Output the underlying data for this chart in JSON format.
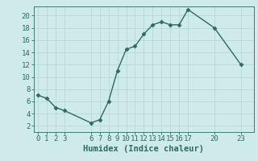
{
  "x": [
    0,
    1,
    2,
    3,
    6,
    7,
    8,
    9,
    10,
    11,
    12,
    13,
    14,
    15,
    16,
    17,
    20,
    23
  ],
  "y": [
    7,
    6.5,
    5,
    4.5,
    2.5,
    3,
    6,
    11,
    14.5,
    15,
    17,
    18.5,
    19,
    18.5,
    18.5,
    21,
    18,
    12
  ],
  "line_color": "#2e6b5e",
  "marker": "D",
  "markersize": 2.5,
  "linewidth": 1.0,
  "background_color": "#ceeaea",
  "grid_color": "#b8d8d8",
  "xlabel": "Humidex (Indice chaleur)",
  "xlim": [
    -0.5,
    24.5
  ],
  "ylim": [
    1,
    21.5
  ],
  "yticks": [
    2,
    4,
    6,
    8,
    10,
    12,
    14,
    16,
    18,
    20
  ],
  "xticks": [
    0,
    1,
    2,
    3,
    6,
    7,
    8,
    9,
    10,
    11,
    12,
    13,
    14,
    15,
    16,
    17,
    20,
    23
  ],
  "label_fontsize": 7.5,
  "tick_fontsize": 6.5
}
